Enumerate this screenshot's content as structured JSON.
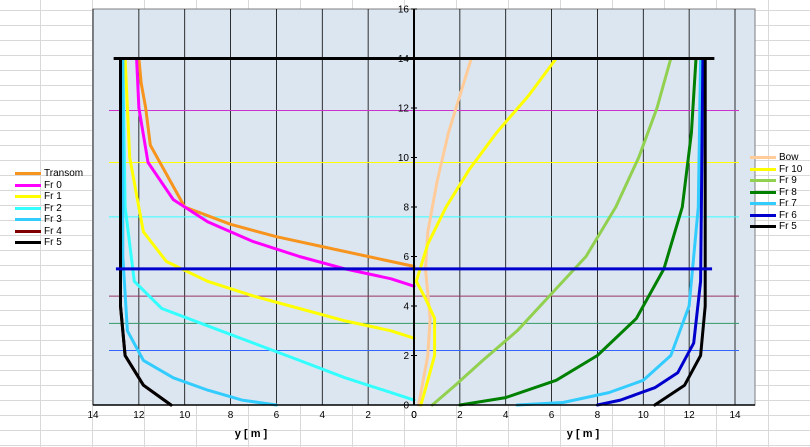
{
  "chart_data": {
    "type": "line",
    "title": "",
    "left": {
      "xlabel": "y [ m ]",
      "xlim": [
        14,
        0
      ],
      "xticks": [
        "14",
        "12",
        "10",
        "8",
        "6",
        "4",
        "2",
        "0"
      ],
      "series": [
        {
          "name": "Transom",
          "color": "#F7941D",
          "x": [
            12.0,
            11.9,
            11.7,
            11.5,
            10.0,
            8.0,
            6.0,
            4.0,
            2.0,
            0.0
          ],
          "y": [
            14.0,
            13.0,
            12.0,
            10.5,
            8.0,
            7.3,
            6.8,
            6.4,
            6.0,
            5.6
          ]
        },
        {
          "name": "Fr 0",
          "color": "#FF00FF",
          "x": [
            12.1,
            12.0,
            11.6,
            10.5,
            9.0,
            7.0,
            5.0,
            3.0,
            1.0,
            0.0
          ],
          "y": [
            14.0,
            12.0,
            9.8,
            8.3,
            7.4,
            6.6,
            6.0,
            5.5,
            5.1,
            4.8
          ]
        },
        {
          "name": "Fr 1",
          "color": "#FFFF00",
          "x": [
            12.6,
            12.4,
            11.8,
            10.8,
            9.0,
            7.0,
            5.0,
            3.0,
            1.0,
            0.0
          ],
          "y": [
            14.0,
            10.0,
            7.0,
            5.8,
            5.0,
            4.4,
            3.9,
            3.4,
            3.0,
            2.7
          ]
        },
        {
          "name": "Fr 2",
          "color": "#33FFFF",
          "x": [
            12.7,
            12.6,
            12.2,
            11.0,
            9.0,
            7.0,
            5.0,
            3.0,
            1.0,
            0.0
          ],
          "y": [
            14.0,
            8.0,
            5.0,
            3.9,
            3.2,
            2.5,
            1.8,
            1.1,
            0.5,
            0.2
          ]
        },
        {
          "name": "Fr 3",
          "color": "#33CCFF",
          "x": [
            12.7,
            12.7,
            12.5,
            11.8,
            10.5,
            9.0,
            7.5,
            6.0
          ],
          "y": [
            14.0,
            6.0,
            3.0,
            1.8,
            1.1,
            0.6,
            0.2,
            0.0
          ]
        },
        {
          "name": "Fr 4",
          "color": "#800000",
          "x": [
            12.8,
            12.8,
            12.6,
            11.8,
            10.6
          ],
          "y": [
            14.0,
            4.0,
            2.0,
            0.8,
            0.0
          ]
        },
        {
          "name": "Fr 5",
          "color": "#000000",
          "x": [
            12.8,
            12.8,
            12.6,
            11.8,
            10.6
          ],
          "y": [
            14.0,
            4.0,
            2.0,
            0.8,
            0.0
          ]
        }
      ]
    },
    "right": {
      "xlabel": "y [ m ]",
      "xlim": [
        0,
        14
      ],
      "xticks": [
        "0",
        "2",
        "4",
        "6",
        "8",
        "10",
        "12",
        "14"
      ],
      "series": [
        {
          "name": "Bow",
          "color": "#FFCC99",
          "x": [
            2.5,
            2.0,
            1.5,
            1.0,
            0.6,
            0.5,
            0.6,
            0.7,
            0.6,
            0.4,
            0.2
          ],
          "y": [
            14.0,
            12.5,
            11.0,
            9.0,
            7.0,
            5.5,
            4.5,
            3.5,
            2.0,
            1.0,
            0.0
          ]
        },
        {
          "name": "Fr 10",
          "color": "#FFFF00",
          "x": [
            6.2,
            5.0,
            3.6,
            2.4,
            1.4,
            0.6,
            0.1,
            0.5,
            0.9,
            0.9,
            0.6,
            0.3
          ],
          "y": [
            14.0,
            12.5,
            11.0,
            9.5,
            8.0,
            6.5,
            5.0,
            4.3,
            3.5,
            2.0,
            1.0,
            0.0
          ]
        },
        {
          "name": "Fr 9",
          "color": "#92D050",
          "x": [
            11.2,
            10.6,
            9.8,
            8.8,
            7.5,
            6.0,
            4.5,
            3.0,
            1.8,
            0.8
          ],
          "y": [
            14.0,
            12.0,
            10.0,
            8.0,
            6.0,
            4.5,
            3.0,
            1.8,
            0.8,
            0.0
          ]
        },
        {
          "name": "Fr 8",
          "color": "#008000",
          "x": [
            12.3,
            12.1,
            11.7,
            10.9,
            9.7,
            8.0,
            6.2,
            4.0,
            2.0
          ],
          "y": [
            14.0,
            11.0,
            8.0,
            5.5,
            3.5,
            2.0,
            1.0,
            0.3,
            0.0
          ]
        },
        {
          "name": "Fr 7",
          "color": "#33CCFF",
          "x": [
            12.5,
            12.4,
            12.0,
            11.2,
            10.0,
            8.5,
            6.5,
            4.5
          ],
          "y": [
            14.0,
            8.0,
            4.0,
            2.0,
            1.0,
            0.5,
            0.1,
            0.0
          ]
        },
        {
          "name": "Fr 6",
          "color": "#0000CC",
          "x": [
            12.6,
            12.5,
            12.2,
            11.5,
            10.5,
            9.0,
            8.0
          ],
          "y": [
            14.0,
            5.0,
            2.5,
            1.3,
            0.7,
            0.2,
            0.0
          ]
        },
        {
          "name": "Fr 5",
          "color": "#000000",
          "x": [
            12.7,
            12.7,
            12.5,
            11.8,
            10.5
          ],
          "y": [
            14.0,
            4.0,
            2.0,
            0.8,
            0.0
          ]
        }
      ]
    },
    "ylim": [
      0,
      16
    ],
    "yticks": [
      "0",
      "2",
      "4",
      "6",
      "8",
      "10",
      "12",
      "14",
      "16"
    ],
    "deck_height": 14,
    "deck_half_breadth": 13,
    "waterline": {
      "y": 5.5,
      "color": "#0000CC"
    },
    "waterlines": [
      {
        "y": 11.9,
        "color": "#CC33CC"
      },
      {
        "y": 9.8,
        "color": "#FFFF00"
      },
      {
        "y": 7.6,
        "color": "#33FFFF"
      },
      {
        "y": 4.4,
        "color": "#993366"
      },
      {
        "y": 3.3,
        "color": "#339966"
      },
      {
        "y": 2.2,
        "color": "#3366FF"
      }
    ],
    "legend_left_placement": "left",
    "legend_right_placement": "right",
    "grid": true,
    "plot_background": "#DCE6F1"
  }
}
